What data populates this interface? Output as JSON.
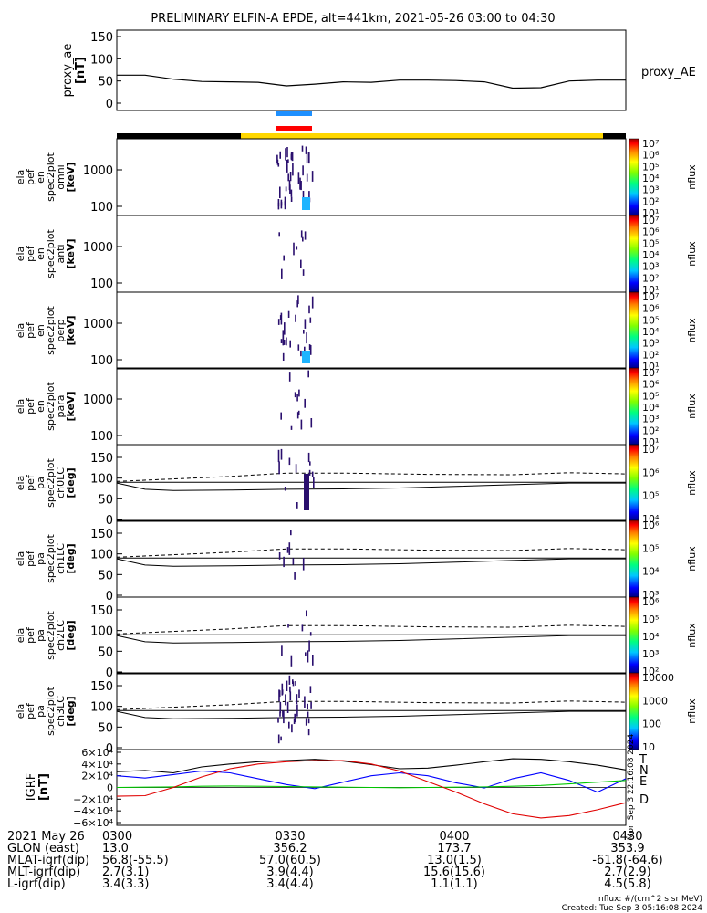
{
  "title": "PRELIMINARY ELFIN-A EPDE, alt=441km, 2021-05-26 03:00 to 04:30",
  "proxy": {
    "ylabel": "proxy_ae",
    "unit": "[nT]",
    "legend": "proxy_AE",
    "ticks": [
      "150",
      "100",
      "50",
      "0"
    ]
  },
  "panels": [
    {
      "kind": "energy",
      "ylabel": [
        "ela",
        "pef",
        "en",
        "spec2plot",
        "omni",
        "[keV]"
      ],
      "ticks": [
        "1000",
        "100"
      ],
      "cb_unit": "nflux",
      "cb_ticks": [
        "10⁷",
        "10⁶",
        "10⁵",
        "10⁴",
        "10³",
        "10²",
        "10¹"
      ]
    },
    {
      "kind": "energy",
      "ylabel": [
        "ela",
        "pef",
        "en",
        "spec2plot",
        "anti",
        "[keV]"
      ],
      "ticks": [
        "1000",
        "100"
      ],
      "cb_unit": "nflux",
      "cb_ticks": [
        "10⁷",
        "10⁶",
        "10⁵",
        "10⁴",
        "10³",
        "10²",
        "10¹"
      ]
    },
    {
      "kind": "energy",
      "ylabel": [
        "ela",
        "pef",
        "en",
        "spec2plot",
        "perp",
        "[keV]"
      ],
      "ticks": [
        "1000",
        "100"
      ],
      "cb_unit": "nflux",
      "cb_ticks": [
        "10⁷",
        "10⁶",
        "10⁵",
        "10⁴",
        "10³",
        "10²",
        "10¹"
      ]
    },
    {
      "kind": "energy",
      "ylabel": [
        "ela",
        "pef",
        "en",
        "spec2plot",
        "para",
        "[keV]"
      ],
      "ticks": [
        "1000",
        "100"
      ],
      "cb_unit": "nflux",
      "cb_ticks": [
        "10⁷",
        "10⁶",
        "10⁵",
        "10⁴",
        "10³",
        "10²",
        "10¹"
      ]
    },
    {
      "kind": "pa",
      "ylabel": [
        "ela",
        "pef",
        "pa",
        "spec2plot",
        "ch0LC",
        "[deg]"
      ],
      "ticks": [
        "150",
        "100",
        "50",
        "0"
      ],
      "cb_unit": "nflux",
      "cb_ticks": [
        "10⁷",
        "10⁶",
        "10⁵",
        "10⁴"
      ]
    },
    {
      "kind": "pa",
      "ylabel": [
        "ela",
        "pef",
        "pa",
        "spec2plot",
        "ch1LC",
        "[deg]"
      ],
      "ticks": [
        "150",
        "100",
        "50",
        "0"
      ],
      "cb_unit": "nflux",
      "cb_ticks": [
        "10⁶",
        "10⁵",
        "10⁴",
        "10³"
      ]
    },
    {
      "kind": "pa",
      "ylabel": [
        "ela",
        "pef",
        "pa",
        "spec2plot",
        "ch2LC",
        "[deg]"
      ],
      "ticks": [
        "150",
        "100",
        "50",
        "0"
      ],
      "cb_unit": "nflux",
      "cb_ticks": [
        "10⁶",
        "10⁵",
        "10⁴",
        "10³",
        "10²"
      ]
    },
    {
      "kind": "pa",
      "ylabel": [
        "ela",
        "pef",
        "pa",
        "spec2plot",
        "ch3LC",
        "[deg]"
      ],
      "ticks": [
        "150",
        "100",
        "50",
        "0"
      ],
      "cb_unit": "nflux",
      "cb_ticks": [
        "10000",
        "1000",
        "100",
        "10"
      ]
    }
  ],
  "bfield": {
    "ylabel": "IGRF",
    "unit": "[nT]",
    "ticks": [
      "6×10⁴",
      "4×10⁴",
      "2×10⁴",
      "0",
      "−2×10⁴",
      "−4×10⁴",
      "−6×10⁴"
    ],
    "legend": [
      {
        "label": "T",
        "color": "#000000"
      },
      {
        "label": "N",
        "color": "#0000ff"
      },
      {
        "label": "E",
        "color": "#00c800"
      },
      {
        "label": "D",
        "color": "#e00000"
      }
    ],
    "side_note": "Mon Sep  3 22:16:08 2024"
  },
  "colors": {
    "blue_bar": "#1e90ff",
    "red_bar": "#ff0000",
    "yellow_bar": "#ffd700",
    "spec_dark": "#2a0f6e",
    "spec_cyan": "#1eb4ff"
  },
  "footer": {
    "rows": [
      {
        "label": "2021 May 26",
        "values": [
          "0300",
          "0330",
          "0400",
          "0430"
        ]
      },
      {
        "label": "GLON (east)",
        "values": [
          "13.0",
          "356.2",
          "173.7",
          "353.9"
        ]
      },
      {
        "label": "MLAT-igrf(dip)",
        "values": [
          "56.8(-55.5)",
          "57.0(60.5)",
          "13.0(1.5)",
          "-61.8(-64.6)"
        ]
      },
      {
        "label": "MLT-igrf(dip)",
        "values": [
          "2.7(3.1)",
          "3.9(4.4)",
          "15.6(15.6)",
          "2.7(2.9)"
        ]
      },
      {
        "label": "L-igrf(dip)",
        "values": [
          "3.4(3.3)",
          "3.4(4.4)",
          "1.1(1.1)",
          "4.5(5.8)"
        ]
      }
    ],
    "units_note": "nflux: #/(cm^2 s sr MeV)",
    "created": "Created: Tue Sep  3 05:16:08 2024"
  },
  "chart_data": [
    {
      "type": "line",
      "title": "proxy_AE",
      "ylabel": "proxy_ae [nT]",
      "ylim": [
        0,
        150
      ],
      "x": [
        0,
        5,
        10,
        15,
        20,
        25,
        30,
        35,
        40,
        45,
        50,
        55,
        60,
        65,
        70,
        75,
        80,
        85,
        90
      ],
      "series": [
        {
          "name": "proxy_AE",
          "values": [
            63,
            63,
            54,
            49,
            48,
            47,
            39,
            43,
            48,
            47,
            52,
            52,
            51,
            48,
            34,
            35,
            50,
            52,
            52
          ]
        }
      ]
    },
    {
      "type": "line",
      "title": "IGRF",
      "ylabel": "IGRF [nT]",
      "ylim": [
        -60000,
        60000
      ],
      "x": [
        0,
        5,
        10,
        15,
        20,
        25,
        30,
        35,
        40,
        45,
        50,
        55,
        60,
        65,
        70,
        75,
        80,
        85,
        90
      ],
      "series": [
        {
          "name": "T",
          "values": [
            27000,
            29000,
            25000,
            35000,
            40000,
            44000,
            46000,
            48000,
            45000,
            39000,
            32000,
            33000,
            38000,
            44000,
            49000,
            48000,
            44000,
            38000,
            30000
          ]
        },
        {
          "name": "N",
          "values": [
            20000,
            16000,
            22000,
            28000,
            25000,
            15000,
            5000,
            -2000,
            9000,
            20000,
            25000,
            20000,
            8000,
            -1000,
            15000,
            25000,
            12000,
            -8000,
            15000
          ]
        },
        {
          "name": "E",
          "values": [
            0,
            500,
            1000,
            2000,
            2500,
            2000,
            1500,
            1000,
            500,
            0,
            -500,
            0,
            500,
            1000,
            2000,
            3500,
            6000,
            9000,
            12000
          ]
        },
        {
          "name": "D",
          "values": [
            -15000,
            -14000,
            0,
            18000,
            32000,
            40000,
            44000,
            46000,
            46000,
            40000,
            28000,
            10000,
            -8000,
            -28000,
            -45000,
            -52000,
            -48000,
            -38000,
            -26000
          ]
        }
      ]
    }
  ]
}
